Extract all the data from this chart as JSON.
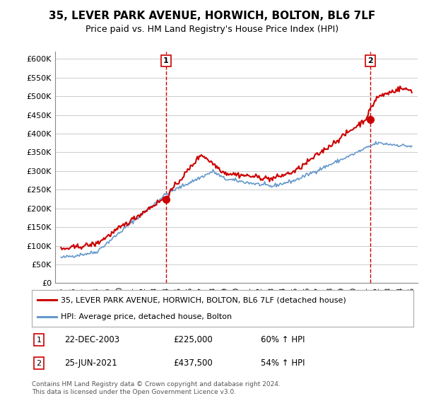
{
  "title": "35, LEVER PARK AVENUE, HORWICH, BOLTON, BL6 7LF",
  "subtitle": "Price paid vs. HM Land Registry's House Price Index (HPI)",
  "legend_line1": "35, LEVER PARK AVENUE, HORWICH, BOLTON, BL6 7LF (detached house)",
  "legend_line2": "HPI: Average price, detached house, Bolton",
  "annotation1_label": "1",
  "annotation1_date": "22-DEC-2003",
  "annotation1_price": "£225,000",
  "annotation1_hpi": "60% ↑ HPI",
  "annotation2_label": "2",
  "annotation2_date": "25-JUN-2021",
  "annotation2_price": "£437,500",
  "annotation2_hpi": "54% ↑ HPI",
  "footnote": "Contains HM Land Registry data © Crown copyright and database right 2024.\nThis data is licensed under the Open Government Licence v3.0.",
  "red_color": "#cc0000",
  "blue_color": "#6699cc",
  "vline_color": "#cc0000",
  "background_color": "#ffffff",
  "grid_color": "#cccccc",
  "ylim": [
    0,
    620000
  ],
  "yticks": [
    0,
    50000,
    100000,
    150000,
    200000,
    250000,
    300000,
    350000,
    400000,
    450000,
    500000,
    550000,
    600000
  ],
  "ytick_labels": [
    "£0",
    "£50K",
    "£100K",
    "£150K",
    "£200K",
    "£250K",
    "£300K",
    "£350K",
    "£400K",
    "£450K",
    "£500K",
    "£550K",
    "£600K"
  ],
  "year_start": 1995,
  "year_end": 2025,
  "sale1_year": 2003.97,
  "sale1_value": 225000,
  "sale2_year": 2021.48,
  "sale2_value": 437500
}
